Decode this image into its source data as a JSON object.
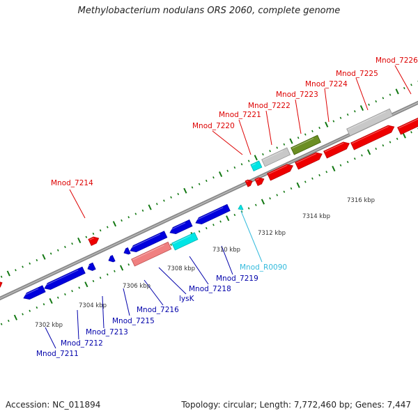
{
  "title": "Methylobacterium nodulans ORS 2060, complete genome",
  "accession": "Accession: NC_011894",
  "summary": "Topology: circular; Length: 7,772,460 bp; Genes: 7,447",
  "colors": {
    "forward_cds": "#ee0000",
    "reverse_cds": "#0000dd",
    "label_forward": "#dd0000",
    "label_reverse": "#0000aa",
    "trna": "#00e5e5",
    "trna_label": "#33bbdd",
    "gray_gene": "#c8c8c8",
    "olive_gene": "#6b8e23",
    "pink_gene": "#f08080",
    "backbone": "#888888",
    "ticks": "#117711"
  },
  "kbp_labels": [
    "7302 kbp",
    "7304 kbp",
    "7306 kbp",
    "7308 kbp",
    "7310 kbp",
    "7312 kbp",
    "7314 kbp",
    "7316 kbp"
  ],
  "top_labels": [
    "Mnod_7214",
    "Mnod_7220",
    "Mnod_7221",
    "Mnod_7222",
    "Mnod_7223",
    "Mnod_7224",
    "Mnod_7225",
    "Mnod_7226"
  ],
  "bottom_labels": [
    "Mnod_7211",
    "Mnod_7212",
    "Mnod_7213",
    "Mnod_7215",
    "Mnod_7216",
    "lysK",
    "Mnod_7218",
    "Mnod_7219",
    "Mnod_R0090"
  ]
}
